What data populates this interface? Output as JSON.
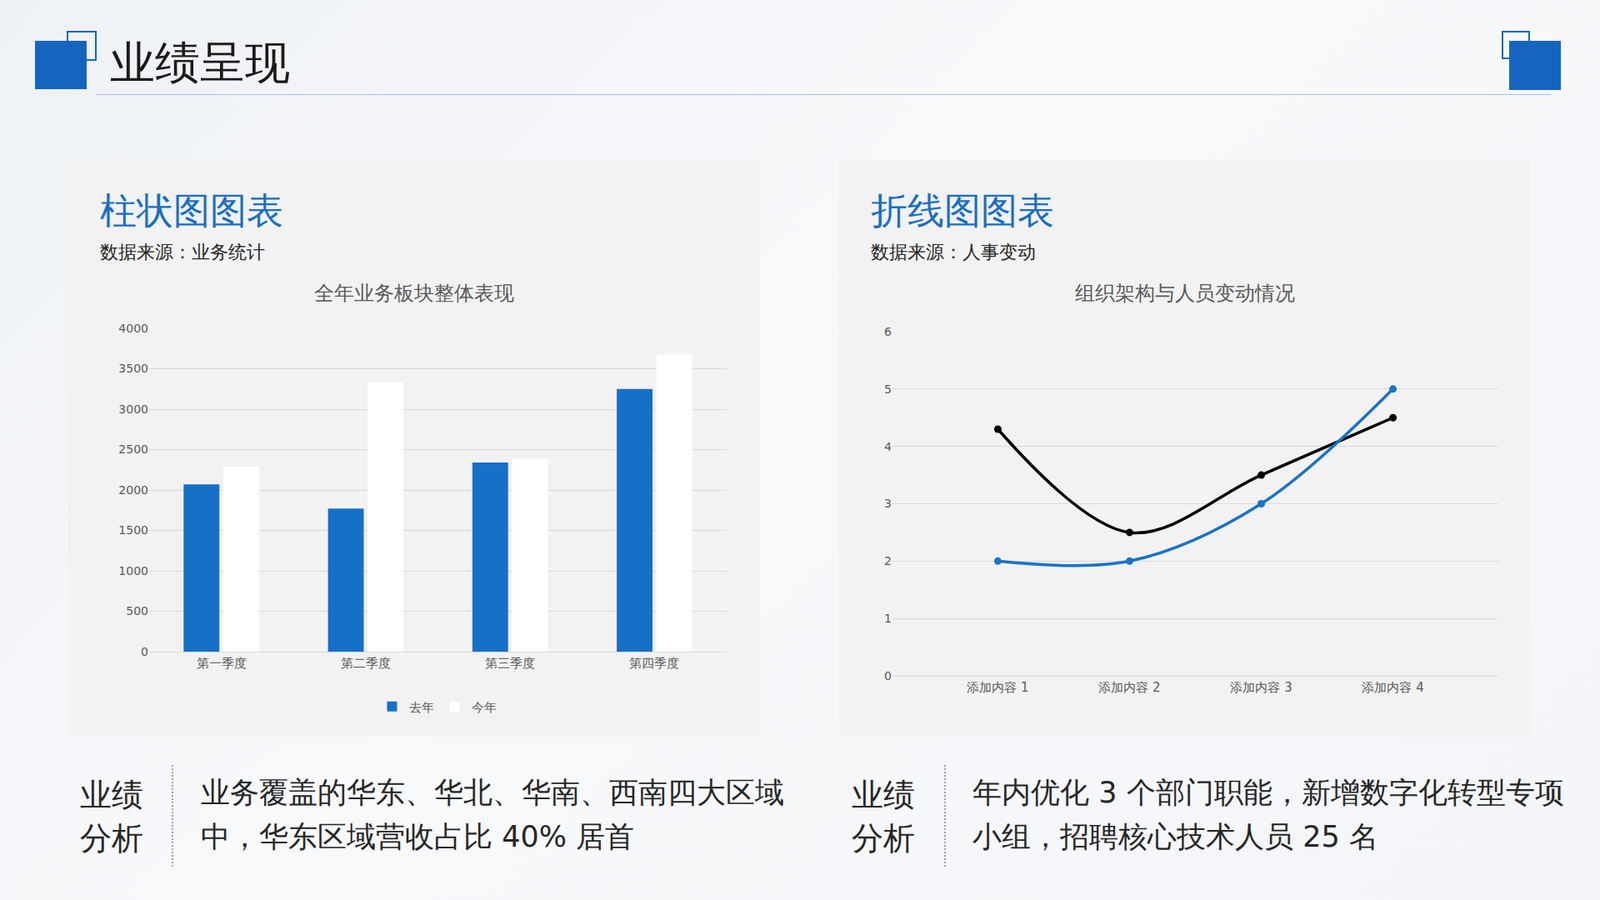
{
  "slide": {
    "title": "业绩呈现",
    "panels": [
      {
        "heading": "柱状图图表",
        "source": "数据来源：业务统计",
        "analysis_label": [
          "业绩",
          "分析"
        ],
        "analysis_text": "业务覆盖的华东、华北、华南、西南四大区域中，华东区域营收占比 40% 居首"
      },
      {
        "heading": "折线图图表",
        "source": "数据来源：人事变动",
        "analysis_label": [
          "业绩",
          "分析"
        ],
        "analysis_text": "年内优化 3 个部门职能，新增数字化转型专项小组，招聘核心技术人员 25 名"
      }
    ]
  },
  "chart_data": [
    {
      "type": "bar",
      "title": "全年业务板块整体表现",
      "categories": [
        "第一季度",
        "第二季度",
        "第三季度",
        "第四季度"
      ],
      "series": [
        {
          "name": "去年",
          "color": "#1570c8",
          "values": [
            2070,
            1770,
            2340,
            3250
          ]
        },
        {
          "name": "今年",
          "color": "#ffffff",
          "values": [
            2290,
            3330,
            2390,
            3680
          ]
        }
      ],
      "ylim": [
        0,
        4000
      ],
      "yticks": [
        0,
        500,
        1000,
        1500,
        2000,
        2500,
        3000,
        3500,
        4000
      ],
      "grid": true,
      "legend": "bottom"
    },
    {
      "type": "line",
      "title": "组织架构与人员变动情况",
      "categories": [
        "添加内容 1",
        "添加内容 2",
        "添加内容 3",
        "添加内容 4"
      ],
      "series": [
        {
          "color": "#000000",
          "marker": "circle",
          "line_style": "solid",
          "values": [
            4.3,
            2.5,
            3.5,
            4.5
          ]
        },
        {
          "color": "#1a73c4",
          "marker": "circle",
          "line_style": "solid",
          "values": [
            2,
            2,
            3,
            5
          ]
        }
      ],
      "ylim": [
        0,
        6
      ],
      "yticks": [
        0,
        1,
        2,
        3,
        4,
        5,
        6
      ],
      "grid": true
    }
  ]
}
